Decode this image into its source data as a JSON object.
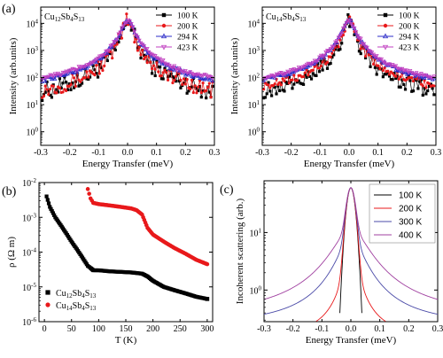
{
  "panels": {
    "a": {
      "letter": "(a)"
    },
    "b": {
      "letter": "(b)"
    },
    "c": {
      "letter": "(c)"
    }
  },
  "chart_data": [
    {
      "id": "a-left",
      "type": "scatter",
      "title": "",
      "compound": {
        "base": "Cu",
        "n1": "12",
        "mid": "Sb",
        "n2": "4",
        "s": "S",
        "n3": "13"
      },
      "xlabel": "Energy Transfer (meV)",
      "ylabel": "Intensity (arb.units)",
      "xlim": [
        -0.3,
        0.3
      ],
      "ylim_log10": [
        -0.5,
        4.6
      ],
      "yscale": "log",
      "xticks": [
        "-0.3",
        "-0.2",
        "-0.1",
        "0.0",
        "0.1",
        "0.2",
        "0.3"
      ],
      "xtick_values": [
        -0.3,
        -0.2,
        -0.1,
        0.0,
        0.1,
        0.2,
        0.3
      ],
      "yticks": [
        {
          "base": "10",
          "exp": "0",
          "value": 1
        },
        {
          "base": "10",
          "exp": "1",
          "value": 10
        },
        {
          "base": "10",
          "exp": "2",
          "value": 100
        },
        {
          "base": "10",
          "exp": "3",
          "value": 1000
        },
        {
          "base": "10",
          "exp": "4",
          "value": 10000
        }
      ],
      "legend_position": "top-right",
      "series": [
        {
          "name": "100 K",
          "color": "#000000",
          "marker": "square",
          "peak": 15000,
          "width": 0.012,
          "background": 5,
          "noise": 0.35
        },
        {
          "name": "200 K",
          "color": "#e8191b",
          "marker": "circle",
          "peak": 14000,
          "width": 0.013,
          "background": 7,
          "noise": 0.3
        },
        {
          "name": "294 K",
          "color": "#2c2cc8",
          "marker": "triangle-up",
          "peak": 13000,
          "width": 0.018,
          "background": 25,
          "noise": 0.08
        },
        {
          "name": "423 K",
          "color": "#c040c0",
          "marker": "triangle-down",
          "peak": 12000,
          "width": 0.02,
          "background": 32,
          "noise": 0.07
        }
      ]
    },
    {
      "id": "a-right",
      "type": "scatter",
      "title": "",
      "compound": {
        "base": "Cu",
        "n1": "14",
        "mid": "Sb",
        "n2": "4",
        "s": "S",
        "n3": "13"
      },
      "xlabel": "Energy Transfer (meV)",
      "ylabel": "Intensity (arb.units)",
      "xlim": [
        -0.3,
        0.3
      ],
      "ylim_log10": [
        -0.5,
        4.6
      ],
      "yscale": "log",
      "xticks": [
        "-0.3",
        "-0.2",
        "-0.1",
        "0.0",
        "0.1",
        "0.2",
        "0.3"
      ],
      "xtick_values": [
        -0.3,
        -0.2,
        -0.1,
        0.0,
        0.1,
        0.2,
        0.3
      ],
      "yticks": [
        {
          "base": "10",
          "exp": "0",
          "value": 1
        },
        {
          "base": "10",
          "exp": "1",
          "value": 10
        },
        {
          "base": "10",
          "exp": "2",
          "value": 100
        },
        {
          "base": "10",
          "exp": "3",
          "value": 1000
        },
        {
          "base": "10",
          "exp": "4",
          "value": 10000
        }
      ],
      "legend_position": "top-right",
      "series": [
        {
          "name": "100 K",
          "color": "#000000",
          "marker": "square",
          "peak": 15000,
          "width": 0.012,
          "background": 8,
          "noise": 0.3
        },
        {
          "name": "200 K",
          "color": "#e8191b",
          "marker": "circle",
          "peak": 14000,
          "width": 0.014,
          "background": 18,
          "noise": 0.15
        },
        {
          "name": "294 K",
          "color": "#2c2cc8",
          "marker": "triangle-up",
          "peak": 13000,
          "width": 0.018,
          "background": 28,
          "noise": 0.07
        },
        {
          "name": "423 K",
          "color": "#c040c0",
          "marker": "triangle-down",
          "peak": 12000,
          "width": 0.02,
          "background": 35,
          "noise": 0.06
        }
      ]
    },
    {
      "id": "b",
      "type": "scatter",
      "title": "",
      "xlabel": "T (K)",
      "ylabel": "ρ (Ω m)",
      "xlim": [
        -10,
        310
      ],
      "ylim_log10": [
        -6,
        -2
      ],
      "yscale": "log",
      "xticks": [
        "0",
        "50",
        "100",
        "150",
        "200",
        "250",
        "300"
      ],
      "xtick_values": [
        0,
        50,
        100,
        150,
        200,
        250,
        300
      ],
      "yticks": [
        {
          "base": "10",
          "exp": "-6",
          "value": 1e-06
        },
        {
          "base": "10",
          "exp": "-5",
          "value": 1e-05
        },
        {
          "base": "10",
          "exp": "-4",
          "value": 0.0001
        },
        {
          "base": "10",
          "exp": "-3",
          "value": 0.001
        },
        {
          "base": "10",
          "exp": "-2",
          "value": 0.01
        }
      ],
      "legend_position": "bottom-left",
      "series": [
        {
          "name": "Cu12Sb4S13",
          "legend": {
            "base": "Cu",
            "n1": "12",
            "mid": "Sb",
            "n2": "4",
            "s": "S",
            "n3": "13"
          },
          "color": "#000000",
          "marker": "square",
          "x": [
            4,
            10,
            20,
            30,
            40,
            50,
            60,
            70,
            80,
            85,
            88,
            90,
            100,
            120,
            140,
            160,
            170,
            180,
            190,
            200,
            220,
            240,
            260,
            280,
            300
          ],
          "y": [
            0.004,
            0.002,
            0.001,
            0.0006,
            0.00035,
            0.0002,
            0.00012,
            7e-05,
            4e-05,
            3.5e-05,
            3.2e-05,
            3e-05,
            3e-05,
            2.8e-05,
            2.7e-05,
            2.6e-05,
            2.5e-05,
            2.4e-05,
            2e-05,
            1.5e-05,
            1e-05,
            8e-06,
            6.5e-06,
            5.2e-06,
            4.5e-06
          ]
        },
        {
          "name": "Cu14Sb4S13",
          "legend": {
            "base": "Cu",
            "n1": "14",
            "mid": "Sb",
            "n2": "4",
            "s": "S",
            "n3": "13"
          },
          "color": "#e8191b",
          "marker": "circle",
          "x": [
            80,
            85,
            90,
            100,
            120,
            140,
            160,
            170,
            180,
            190,
            200,
            220,
            240,
            260,
            280,
            300
          ],
          "y": [
            0.0065,
            0.0035,
            0.0026,
            0.0024,
            0.0022,
            0.002,
            0.0018,
            0.0016,
            0.0012,
            0.0005,
            0.00032,
            0.0002,
            0.00013,
            9e-05,
            6e-05,
            4.5e-05
          ]
        }
      ]
    },
    {
      "id": "c",
      "type": "line",
      "title": "",
      "xlabel": "Energy Transfer (meV)",
      "ylabel": "Incoherent scattering (arb.)",
      "xlim": [
        -0.3,
        0.3
      ],
      "ylim_log10": [
        -0.55,
        1.9
      ],
      "yscale": "log",
      "xticks": [
        "-0.3",
        "-0.2",
        "-0.1",
        "0.0",
        "0.1",
        "0.2",
        "0.3"
      ],
      "xtick_values": [
        -0.3,
        -0.2,
        -0.1,
        0.0,
        0.1,
        0.2,
        0.3
      ],
      "yticks": [
        {
          "base": "10",
          "exp": "0",
          "value": 1
        },
        {
          "base": "10",
          "exp": "1",
          "value": 10
        }
      ],
      "legend_position": "top-right",
      "series": [
        {
          "name": "100 K",
          "color": "#000000",
          "peak": 60,
          "width": 0.012,
          "tail_gamma": 0.0001,
          "tail_amp": 0
        },
        {
          "name": "200 K",
          "color": "#e8191b",
          "peak": 60,
          "width": 0.012,
          "tail_gamma": 0.02,
          "tail_amp": 5
        },
        {
          "name": "300 K",
          "color": "#4b4ba8",
          "peak": 60,
          "width": 0.012,
          "tail_gamma": 0.04,
          "tail_amp": 8
        },
        {
          "name": "400 K",
          "color": "#a040a0",
          "peak": 60,
          "width": 0.012,
          "tail_gamma": 0.055,
          "tail_amp": 11
        }
      ]
    }
  ]
}
